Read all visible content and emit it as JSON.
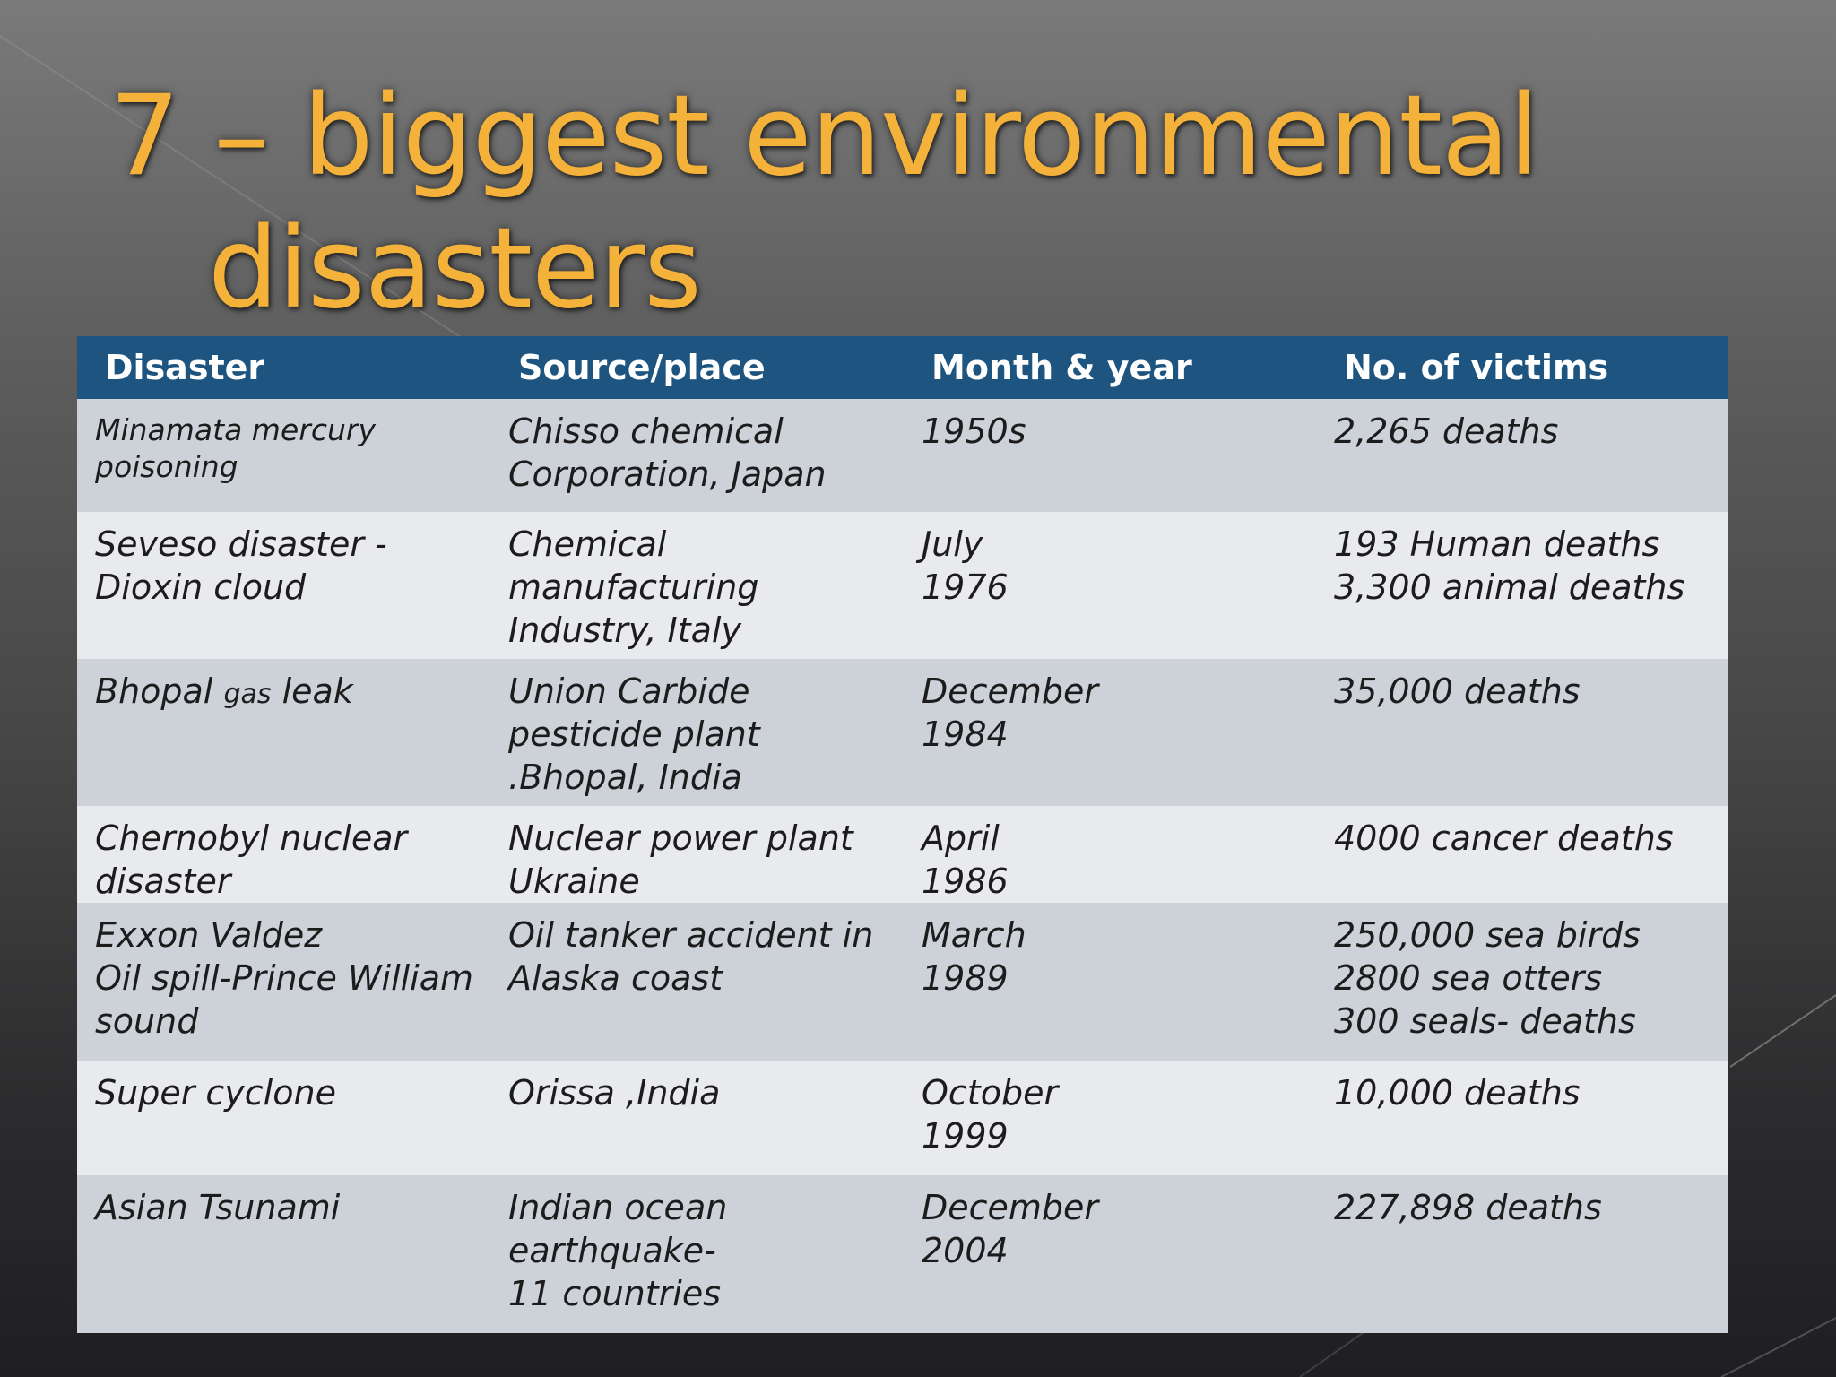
{
  "slide": {
    "title_line1": "7 – biggest environmental",
    "title_line2": "disasters"
  },
  "table": {
    "headers": [
      "Disaster",
      "Source/place",
      "Month & year",
      "No. of victims"
    ],
    "rows": [
      {
        "disaster": "Minamata mercury\npoisoning",
        "source": "Chisso chemical\nCorporation, Japan",
        "date": " 1950s",
        "victims": "2,265 deaths"
      },
      {
        "disaster": "Seveso disaster -\nDioxin cloud",
        "source": "Chemical\nmanufacturing\nIndustry, Italy",
        "date": "July\n1976",
        "victims": "193 Human deaths\n3,300 animal deaths"
      },
      {
        "disaster_a": "Bhopal ",
        "disaster_b": "gas",
        "disaster_c": " leak",
        "source": "Union Carbide\npesticide plant\n.Bhopal, India",
        "date": "December\n1984",
        "victims": "35,000 deaths"
      },
      {
        "disaster": "Chernobyl nuclear\ndisaster",
        "source": "Nuclear power plant\nUkraine",
        "date": "April\n1986",
        "victims": "4000 cancer deaths"
      },
      {
        "disaster": "Exxon Valdez\nOil  spill-Prince William\nsound",
        "source": "Oil tanker accident in\nAlaska coast",
        "date": "March\n1989",
        "victims": "250,000 sea birds\n2800 sea otters\n300 seals- deaths"
      },
      {
        "disaster": "Super cyclone",
        "source": "Orissa ,India",
        "date": "October\n1999",
        "victims": "10,000 deaths"
      },
      {
        "disaster": "Asian  Tsunami",
        "source": "Indian ocean\nearthquake-\n11 countries",
        "date": " December\n 2004",
        "victims": "227,898 deaths"
      }
    ]
  }
}
